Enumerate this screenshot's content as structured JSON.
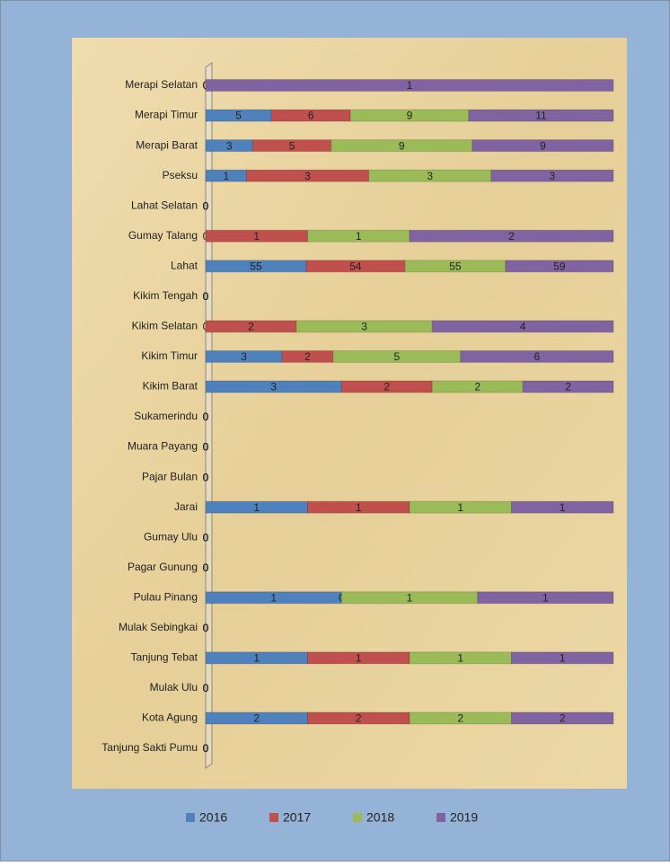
{
  "chart_data": {
    "type": "bar",
    "orientation": "horizontal",
    "stacking": "percent",
    "categories": [
      "Merapi Selatan",
      "Merapi Timur",
      "Merapi Barat",
      "Pseksu",
      "Lahat Selatan",
      "Gumay Talang",
      "Lahat",
      "Kikim Tengah",
      "Kikim Selatan",
      "Kikim Timur",
      "Kikim Barat",
      "Sukamerindu",
      "Muara Payang",
      "Pajar Bulan",
      "Jarai",
      "Gumay Ulu",
      "Pagar Gunung",
      "Pulau Pinang",
      "Mulak Sebingkai",
      "Tanjung Tebat",
      "Mulak Ulu",
      "Kota Agung",
      "Tanjung Sakti Pumu"
    ],
    "series": [
      {
        "name": "2016",
        "color": "#4f81bd",
        "values": [
          0,
          5,
          3,
          1,
          0,
          0,
          55,
          0,
          0,
          3,
          3,
          0,
          0,
          0,
          1,
          0,
          0,
          1,
          0,
          1,
          0,
          2,
          0
        ]
      },
      {
        "name": "2017",
        "color": "#c0504d",
        "values": [
          0,
          6,
          5,
          3,
          0,
          1,
          54,
          0,
          2,
          2,
          2,
          0,
          0,
          0,
          1,
          0,
          0,
          0,
          0,
          1,
          0,
          2,
          0
        ]
      },
      {
        "name": "2018",
        "color": "#9bbb59",
        "values": [
          0,
          9,
          9,
          3,
          0,
          1,
          55,
          0,
          3,
          5,
          2,
          0,
          0,
          0,
          1,
          0,
          0,
          1,
          0,
          1,
          0,
          2,
          0
        ]
      },
      {
        "name": "2019",
        "color": "#8064a2",
        "values": [
          1,
          11,
          9,
          3,
          0,
          2,
          59,
          0,
          4,
          6,
          2,
          0,
          0,
          0,
          1,
          0,
          0,
          1,
          0,
          1,
          0,
          2,
          0
        ]
      }
    ],
    "legend": "bottom"
  }
}
